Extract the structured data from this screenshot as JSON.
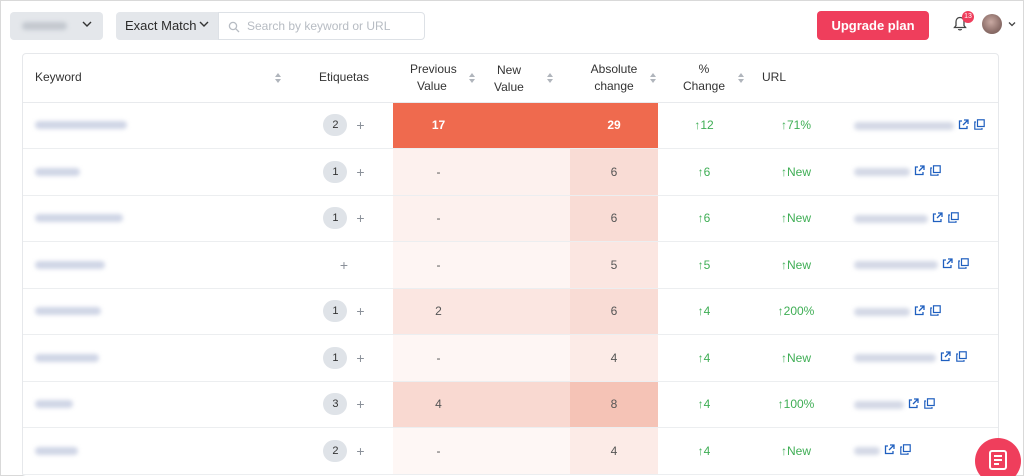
{
  "topbar": {
    "match_type": "Exact Match",
    "search_placeholder": "Search by keyword or URL",
    "upgrade_label": "Upgrade plan",
    "notification_count": "13"
  },
  "table": {
    "headers": {
      "keyword": "Keyword",
      "tags": "Etiquetas",
      "previous_1": "Previous",
      "previous_2": "Value",
      "new_1": "New",
      "new_2": "Value",
      "abs_1": "Absolute",
      "abs_2": "change",
      "pct_1": "%",
      "pct_2": "Change",
      "url": "URL"
    },
    "rows": [
      {
        "tags": "2",
        "previous": "17",
        "new": "29",
        "abs": "↑12",
        "pct": "↑71%"
      },
      {
        "tags": "1",
        "previous": "-",
        "new": "6",
        "abs": "↑6",
        "pct": "↑New"
      },
      {
        "tags": "1",
        "previous": "-",
        "new": "6",
        "abs": "↑6",
        "pct": "↑New"
      },
      {
        "tags": "",
        "previous": "-",
        "new": "5",
        "abs": "↑5",
        "pct": "↑New"
      },
      {
        "tags": "1",
        "previous": "2",
        "new": "6",
        "abs": "↑4",
        "pct": "↑200%"
      },
      {
        "tags": "1",
        "previous": "-",
        "new": "4",
        "abs": "↑4",
        "pct": "↑New"
      },
      {
        "tags": "3",
        "previous": "4",
        "new": "8",
        "abs": "↑4",
        "pct": "↑100%"
      },
      {
        "tags": "2",
        "previous": "-",
        "new": "4",
        "abs": "↑4",
        "pct": "↑New"
      }
    ],
    "tag_add_symbol": "+"
  },
  "colors": {
    "accent": "#ef3e5c",
    "highlight_strong": "#ef6a4e",
    "highlight_light": "#fbe3dd",
    "positive": "#3fae55"
  }
}
